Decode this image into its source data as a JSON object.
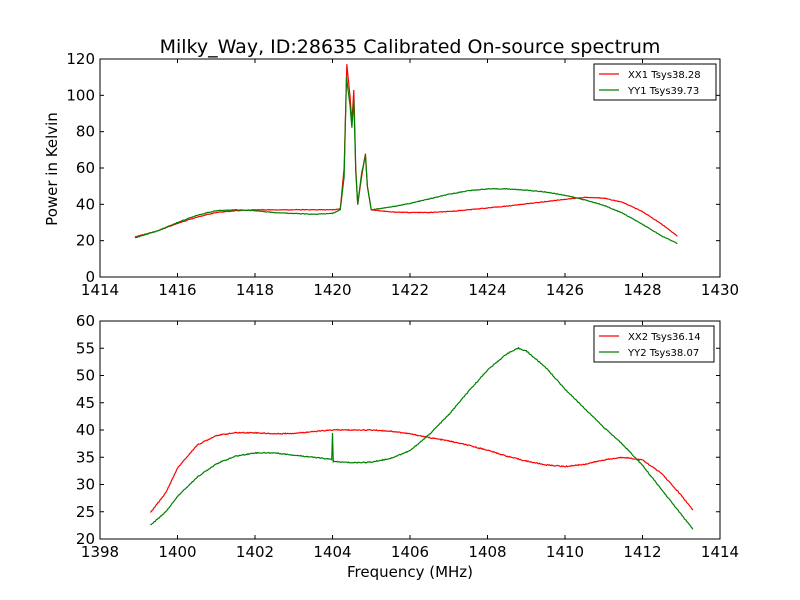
{
  "figure": {
    "title": "Milky_Way, ID:28635 Calibrated On-source spectrum",
    "ylabel": "Power in Kelvin",
    "xlabel": "Frequency (MHz)"
  },
  "colors": {
    "red": "#ff0000",
    "green": "#008000"
  },
  "chart_data": [
    {
      "type": "line",
      "title": "Milky_Way, ID:28635 Calibrated On-source spectrum",
      "xlabel": "",
      "ylabel": "Power in Kelvin",
      "xlim": [
        1414,
        1430
      ],
      "ylim": [
        0,
        120
      ],
      "xticks": [
        1414,
        1416,
        1418,
        1420,
        1422,
        1424,
        1426,
        1428,
        1430
      ],
      "yticks": [
        0,
        20,
        40,
        60,
        80,
        100,
        120
      ],
      "grid": false,
      "legend_position": "top-right",
      "series": [
        {
          "name": "XX1 Tsys38.28",
          "color": "#ff0000",
          "points": [
            [
              1414.9,
              22
            ],
            [
              1415.5,
              25.5
            ],
            [
              1416,
              29.5
            ],
            [
              1416.5,
              33
            ],
            [
              1417,
              35.5
            ],
            [
              1417.5,
              36.5
            ],
            [
              1418,
              37
            ],
            [
              1418.5,
              37
            ],
            [
              1419,
              37
            ],
            [
              1419.5,
              37
            ],
            [
              1420,
              37
            ],
            [
              1420.2,
              37.5
            ],
            [
              1420.3,
              60
            ],
            [
              1420.37,
              117
            ],
            [
              1420.45,
              100
            ],
            [
              1420.5,
              85
            ],
            [
              1420.55,
              103
            ],
            [
              1420.6,
              60
            ],
            [
              1420.65,
              40
            ],
            [
              1420.75,
              55
            ],
            [
              1420.85,
              68
            ],
            [
              1420.9,
              50
            ],
            [
              1421,
              37
            ],
            [
              1421.5,
              35.8
            ],
            [
              1422,
              35.5
            ],
            [
              1422.5,
              35.5
            ],
            [
              1423,
              36
            ],
            [
              1423.5,
              37
            ],
            [
              1424,
              38
            ],
            [
              1424.5,
              39
            ],
            [
              1425,
              40.3
            ],
            [
              1425.5,
              41.5
            ],
            [
              1426,
              42.8
            ],
            [
              1426.5,
              43.8
            ],
            [
              1427,
              43.5
            ],
            [
              1427.5,
              41
            ],
            [
              1428,
              36
            ],
            [
              1428.5,
              29
            ],
            [
              1428.9,
              22.5
            ]
          ]
        },
        {
          "name": "YY1 Tsys39.73",
          "color": "#008000",
          "points": [
            [
              1414.9,
              21.5
            ],
            [
              1415.5,
              25.5
            ],
            [
              1416,
              30
            ],
            [
              1416.5,
              34
            ],
            [
              1417,
              36.5
            ],
            [
              1417.5,
              37
            ],
            [
              1418,
              36.5
            ],
            [
              1418.5,
              35.5
            ],
            [
              1419,
              35
            ],
            [
              1419.5,
              34.5
            ],
            [
              1420,
              35
            ],
            [
              1420.2,
              37
            ],
            [
              1420.3,
              55
            ],
            [
              1420.36,
              110
            ],
            [
              1420.45,
              95
            ],
            [
              1420.5,
              82
            ],
            [
              1420.55,
              98
            ],
            [
              1420.6,
              58
            ],
            [
              1420.65,
              40
            ],
            [
              1420.75,
              57
            ],
            [
              1420.85,
              67
            ],
            [
              1420.9,
              50
            ],
            [
              1421,
              37
            ],
            [
              1421.5,
              38.5
            ],
            [
              1422,
              40.5
            ],
            [
              1422.5,
              43
            ],
            [
              1423,
              45.5
            ],
            [
              1423.5,
              47.5
            ],
            [
              1424,
              48.5
            ],
            [
              1424.5,
              48.5
            ],
            [
              1425,
              47.8
            ],
            [
              1425.5,
              46.8
            ],
            [
              1426,
              45
            ],
            [
              1426.5,
              42.5
            ],
            [
              1427,
              39.5
            ],
            [
              1427.5,
              35
            ],
            [
              1428,
              29
            ],
            [
              1428.5,
              22.5
            ],
            [
              1428.9,
              18.5
            ]
          ]
        }
      ]
    },
    {
      "type": "line",
      "title": "",
      "xlabel": "Frequency (MHz)",
      "ylabel": "",
      "xlim": [
        1398,
        1414
      ],
      "ylim": [
        20,
        60
      ],
      "xticks": [
        1398,
        1400,
        1402,
        1404,
        1406,
        1408,
        1410,
        1412,
        1414
      ],
      "yticks": [
        20,
        25,
        30,
        35,
        40,
        45,
        50,
        55,
        60
      ],
      "grid": false,
      "legend_position": "top-right",
      "series": [
        {
          "name": "XX2 Tsys36.14",
          "color": "#ff0000",
          "points": [
            [
              1399.3,
              24.8
            ],
            [
              1399.7,
              28.5
            ],
            [
              1400,
              33
            ],
            [
              1400.5,
              37.2
            ],
            [
              1401,
              39
            ],
            [
              1401.5,
              39.5
            ],
            [
              1402,
              39.5
            ],
            [
              1402.5,
              39.3
            ],
            [
              1403,
              39.4
            ],
            [
              1403.5,
              39.7
            ],
            [
              1404,
              40
            ],
            [
              1404.5,
              40
            ],
            [
              1405,
              40
            ],
            [
              1405.5,
              39.8
            ],
            [
              1406,
              39.3
            ],
            [
              1406.5,
              38.6
            ],
            [
              1407,
              38
            ],
            [
              1407.5,
              37.2
            ],
            [
              1408,
              36.3
            ],
            [
              1408.5,
              35.2
            ],
            [
              1409,
              34.3
            ],
            [
              1409.5,
              33.6
            ],
            [
              1410,
              33.3
            ],
            [
              1410.5,
              33.7
            ],
            [
              1411,
              34.5
            ],
            [
              1411.5,
              35
            ],
            [
              1412,
              34.5
            ],
            [
              1412.5,
              32
            ],
            [
              1413,
              28
            ],
            [
              1413.3,
              25.3
            ]
          ]
        },
        {
          "name": "YY2 Tsys38.07",
          "color": "#008000",
          "points": [
            [
              1399.3,
              22.5
            ],
            [
              1399.7,
              25
            ],
            [
              1400,
              27.8
            ],
            [
              1400.5,
              31.3
            ],
            [
              1401,
              33.8
            ],
            [
              1401.5,
              35.2
            ],
            [
              1402,
              35.8
            ],
            [
              1402.5,
              35.8
            ],
            [
              1403,
              35.4
            ],
            [
              1403.5,
              35
            ],
            [
              1403.98,
              34.6
            ],
            [
              1404,
              39.5
            ],
            [
              1404.02,
              34.2
            ],
            [
              1404.5,
              34
            ],
            [
              1405,
              34.1
            ],
            [
              1405.5,
              34.8
            ],
            [
              1406,
              36.2
            ],
            [
              1406.5,
              39.2
            ],
            [
              1407,
              42.8
            ],
            [
              1407.5,
              47
            ],
            [
              1408,
              51
            ],
            [
              1408.5,
              54
            ],
            [
              1408.8,
              55
            ],
            [
              1409,
              54.5
            ],
            [
              1409.5,
              51.5
            ],
            [
              1410,
              47.5
            ],
            [
              1410.5,
              44
            ],
            [
              1411,
              40.5
            ],
            [
              1411.5,
              37.3
            ],
            [
              1412,
              33.5
            ],
            [
              1412.5,
              29
            ],
            [
              1413,
              24.5
            ],
            [
              1413.3,
              21.8
            ]
          ]
        }
      ]
    }
  ]
}
